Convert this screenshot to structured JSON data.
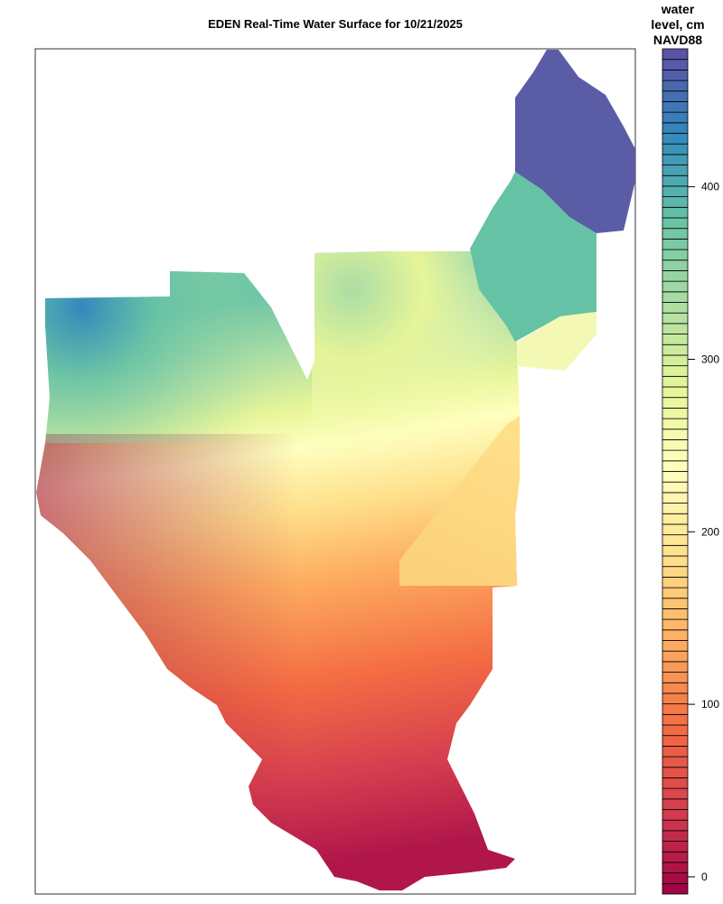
{
  "title": "EDEN Real-Time Water Surface for 10/21/2025",
  "chart_data": {
    "type": "heatmap",
    "title": "EDEN Real-Time Water Surface for 10/21/2025",
    "colorbar": {
      "title_lines": [
        "water",
        "level, cm",
        "NAVD88"
      ],
      "ticks": [
        0,
        100,
        200,
        300,
        400
      ],
      "range": [
        -10,
        480
      ],
      "bins": 80,
      "palette": [
        "#9e0142",
        "#d53e4f",
        "#f46d43",
        "#fdae61",
        "#fee08b",
        "#ffffbf",
        "#e6f598",
        "#abdda4",
        "#66c2a5",
        "#3288bd",
        "#5e4fa2"
      ]
    },
    "regions": [
      {
        "name": "northeast-area",
        "approx_level_cm": 470
      },
      {
        "name": "northeast-middle-area",
        "approx_level_cm": 390
      },
      {
        "name": "northeast-small-area",
        "approx_level_cm": 280
      },
      {
        "name": "northwest-area",
        "approx_level_cm_range": [
          300,
          450
        ]
      },
      {
        "name": "central-area",
        "approx_level_cm_range": [
          250,
          350
        ]
      },
      {
        "name": "southern-area",
        "approx_level_cm_range": [
          0,
          230
        ]
      }
    ]
  }
}
